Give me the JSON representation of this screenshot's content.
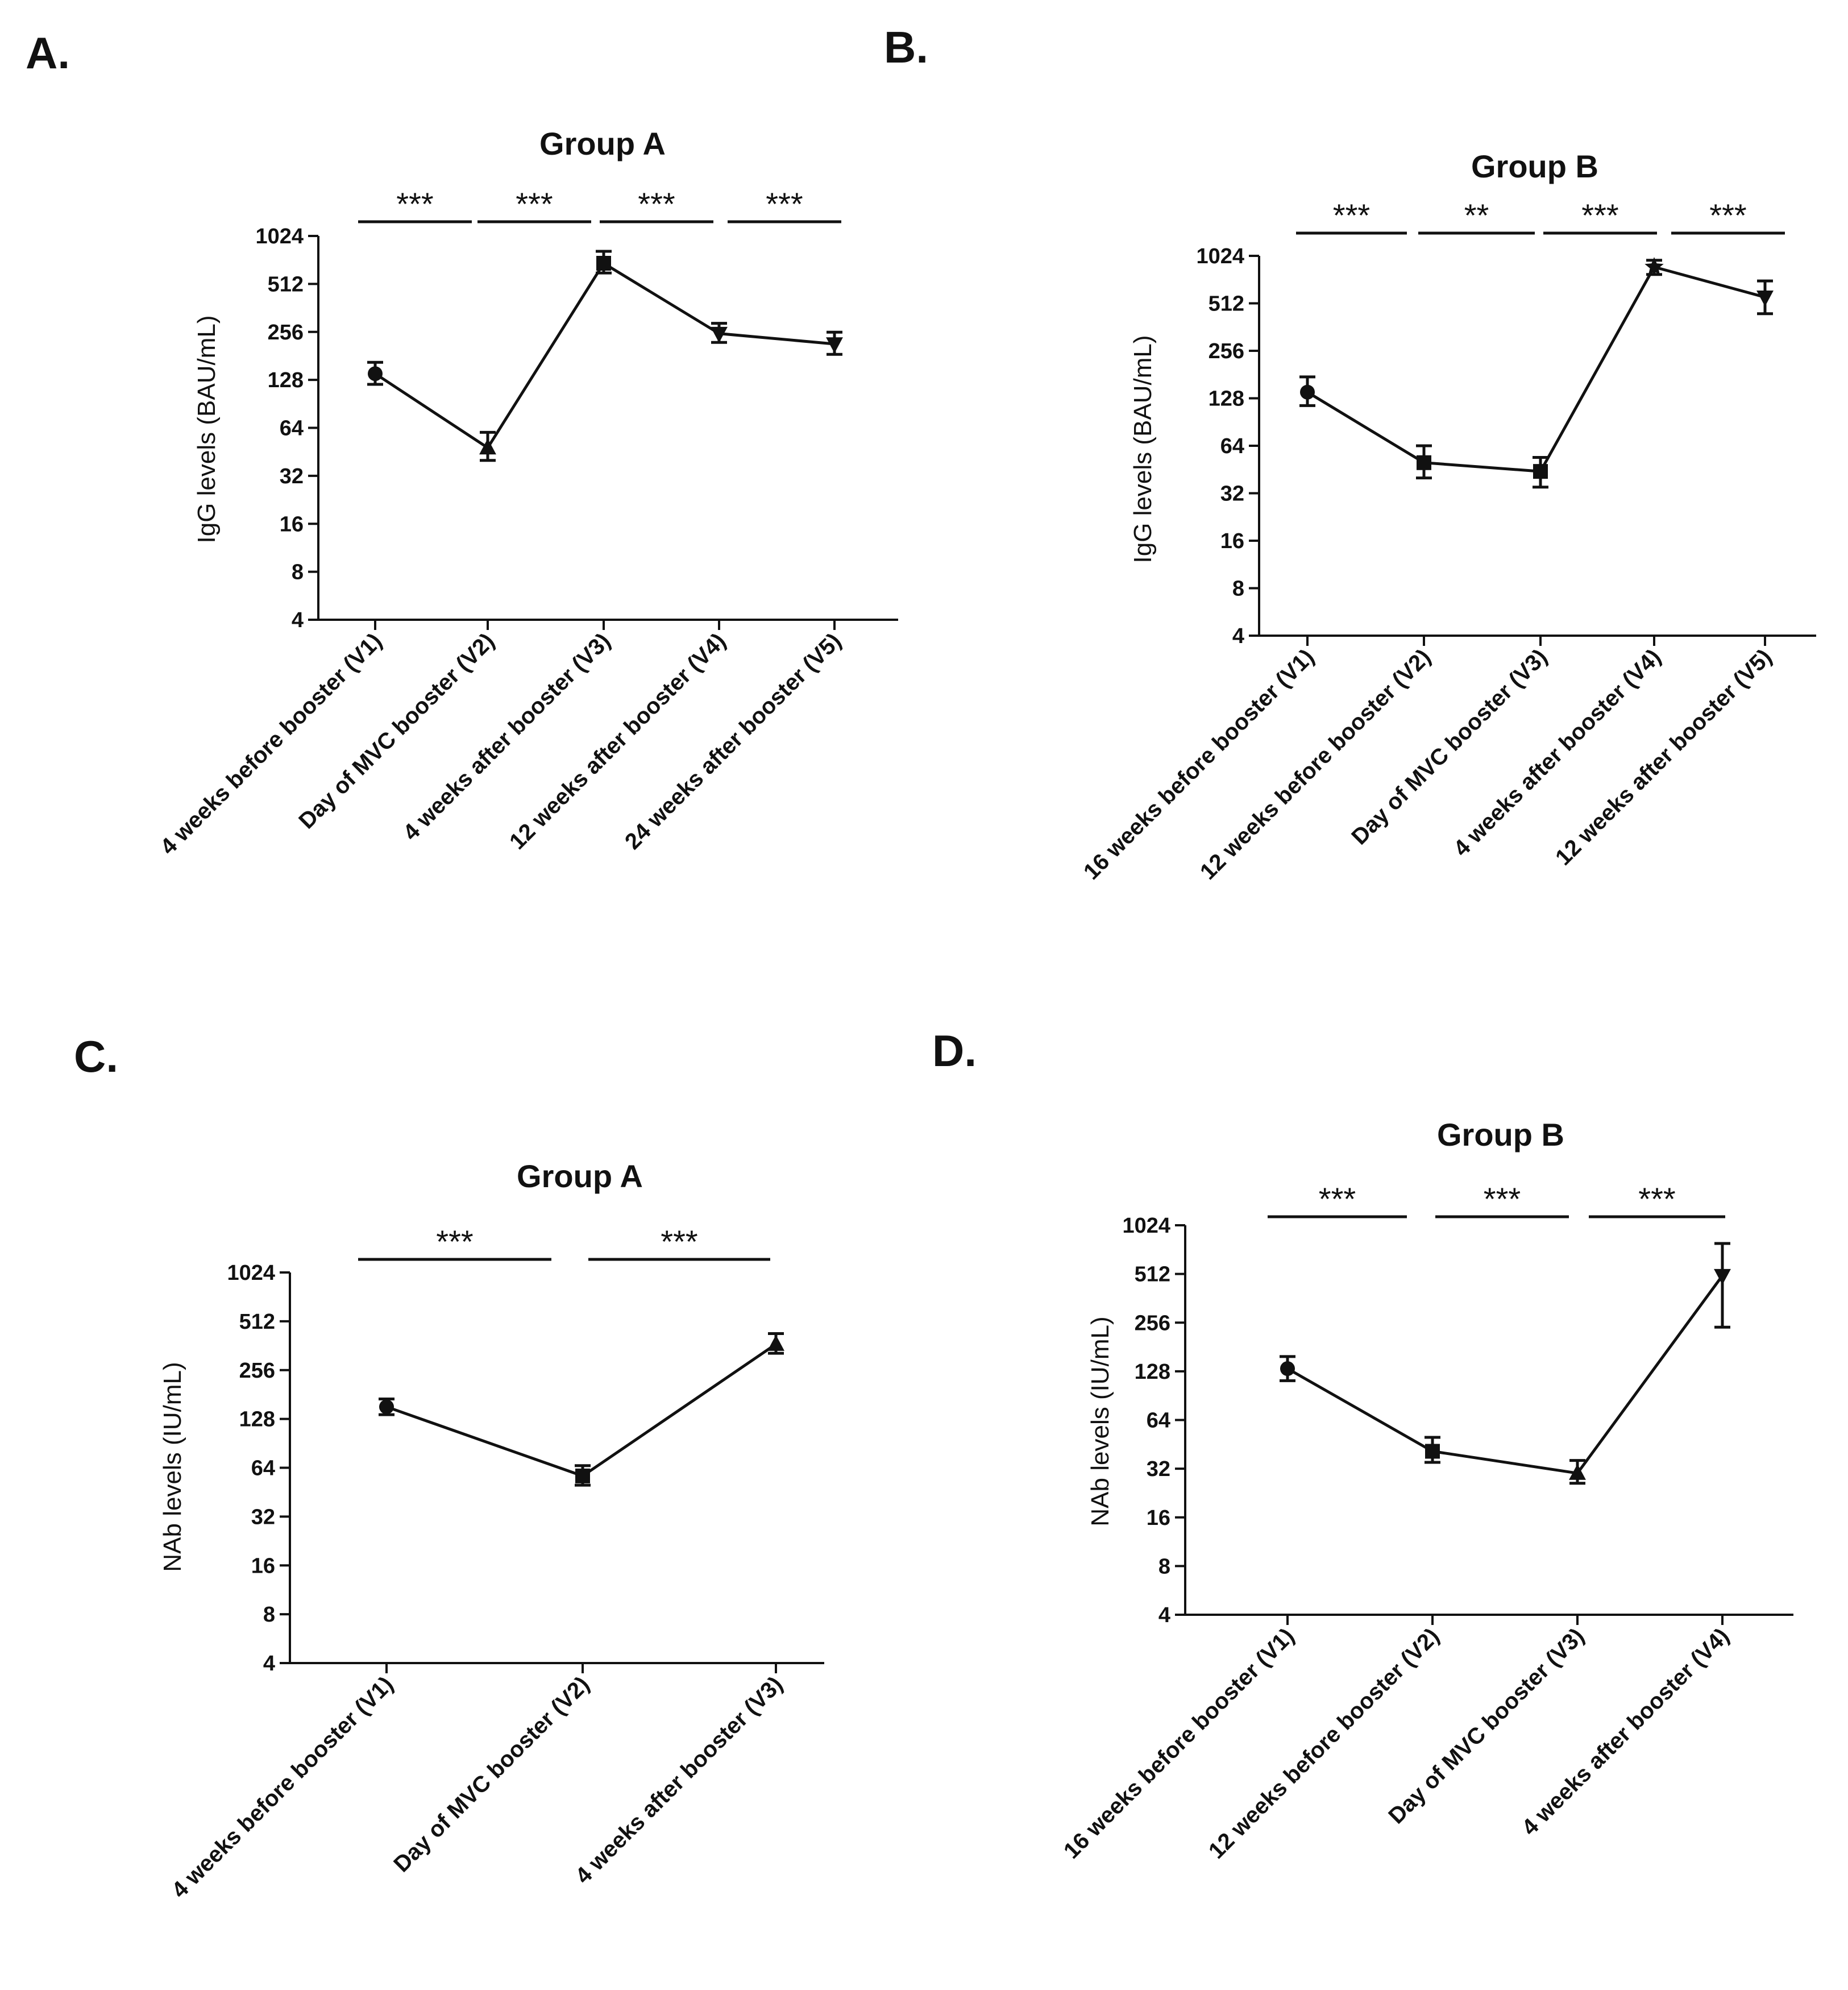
{
  "chart_data": [
    {
      "panel": "A.",
      "type": "line",
      "title": "Group A",
      "ylabel": "IgG levels (BAU/mL)",
      "xlabel": "",
      "yscale": "log2",
      "ylim": [
        4,
        1024
      ],
      "yticks": [
        4,
        8,
        16,
        32,
        64,
        128,
        256,
        512,
        1024
      ],
      "categories": [
        "4 weeks before booster (V1)",
        "Day of MVC booster (V2)",
        "4 weeks after booster (V3)",
        "12 weeks after booster (V4)",
        "24 weeks after booster (V5)"
      ],
      "series": [
        {
          "name": "IgG",
          "values": [
            140,
            48,
            690,
            250,
            215
          ],
          "err_low": [
            120,
            40,
            600,
            220,
            185
          ],
          "err_high": [
            165,
            60,
            820,
            290,
            255
          ],
          "markers": [
            "circle",
            "triangle-up",
            "square",
            "triangle-down",
            "triangle-down"
          ]
        }
      ],
      "significance": [
        {
          "from": 0,
          "to": 1,
          "label": "***"
        },
        {
          "from": 1,
          "to": 2,
          "label": "***"
        },
        {
          "from": 2,
          "to": 3,
          "label": "***"
        },
        {
          "from": 3,
          "to": 4,
          "label": "***"
        }
      ],
      "grid": false
    },
    {
      "panel": "B.",
      "type": "line",
      "title": "Group B",
      "ylabel": "IgG levels (BAU/mL)",
      "xlabel": "",
      "yscale": "log2",
      "ylim": [
        4,
        1024
      ],
      "yticks": [
        4,
        8,
        16,
        32,
        64,
        128,
        256,
        512,
        1024
      ],
      "categories": [
        "16 weeks before booster (V1)",
        "12 weeks before booster (V2)",
        "Day of MVC booster (V3)",
        "4 weeks after booster (V4)",
        "12 weeks after booster (V5)"
      ],
      "series": [
        {
          "name": "IgG",
          "values": [
            140,
            50,
            44,
            870,
            560
          ],
          "err_low": [
            115,
            40,
            35,
            780,
            440
          ],
          "err_high": [
            175,
            64,
            54,
            960,
            710
          ],
          "markers": [
            "circle",
            "square",
            "square",
            "star",
            "triangle-down"
          ]
        }
      ],
      "significance": [
        {
          "from": 0,
          "to": 1,
          "label": "***"
        },
        {
          "from": 1,
          "to": 2,
          "label": "**"
        },
        {
          "from": 2,
          "to": 3,
          "label": "***"
        },
        {
          "from": 3,
          "to": 4,
          "label": "***"
        }
      ],
      "grid": false
    },
    {
      "panel": "C.",
      "type": "line",
      "title": "Group A",
      "ylabel": "NAb levels (IU/mL)",
      "xlabel": "",
      "yscale": "log2",
      "ylim": [
        4,
        1024
      ],
      "yticks": [
        4,
        8,
        16,
        32,
        64,
        128,
        256,
        512,
        1024
      ],
      "categories": [
        "4 weeks before booster (V1)",
        "Day of MVC booster (V2)",
        "4 weeks after booster (V3)"
      ],
      "series": [
        {
          "name": "NAb",
          "values": [
            152,
            57,
            370
          ],
          "err_low": [
            136,
            50,
            325
          ],
          "err_high": [
            170,
            66,
            430
          ],
          "markers": [
            "circle",
            "square",
            "triangle-up"
          ]
        }
      ],
      "significance": [
        {
          "from": 0,
          "to": 1,
          "label": "***"
        },
        {
          "from": 1,
          "to": 2,
          "label": "***"
        }
      ],
      "grid": false
    },
    {
      "panel": "D.",
      "type": "line",
      "title": "Group  B",
      "ylabel": "NAb levels (IU/mL)",
      "xlabel": "",
      "yscale": "log2",
      "ylim": [
        4,
        1024
      ],
      "yticks": [
        4,
        8,
        16,
        32,
        64,
        128,
        256,
        512,
        1024
      ],
      "categories": [
        "16 weeks before booster (V1)",
        "12 weeks before booster (V2)",
        "Day of MVC booster (V3)",
        "4 weeks after booster (V4)"
      ],
      "series": [
        {
          "name": "NAb",
          "values": [
            133,
            41,
            30,
            500
          ],
          "err_low": [
            112,
            35,
            26,
            240
          ],
          "err_high": [
            158,
            50,
            36,
            790
          ],
          "markers": [
            "circle",
            "square",
            "triangle-up",
            "triangle-down"
          ]
        }
      ],
      "significance": [
        {
          "from": 0,
          "to": 1,
          "label": "***"
        },
        {
          "from": 1,
          "to": 2,
          "label": "***"
        },
        {
          "from": 2,
          "to": 3,
          "label": "***"
        }
      ],
      "grid": false
    }
  ]
}
